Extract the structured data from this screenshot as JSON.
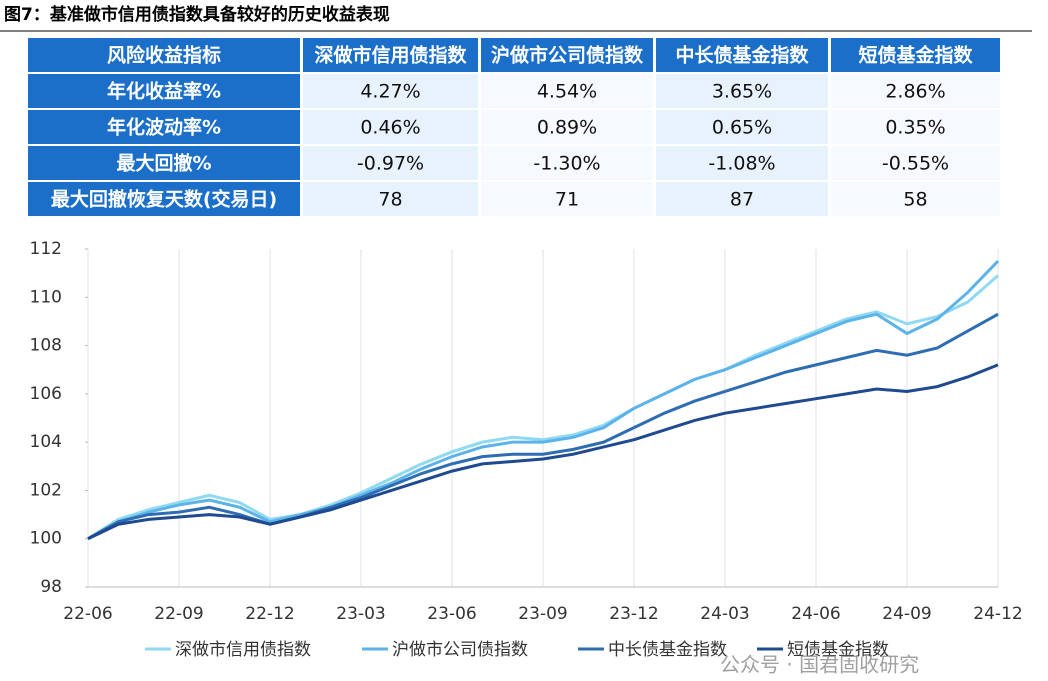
{
  "title": "图7：基准做市信用债指数具备较好的历史收益表现",
  "table": {
    "header": [
      "风险收益指标",
      "深做市信用债指数",
      "沪做市公司债指数",
      "中长债基金指数",
      "短债基金指数"
    ],
    "rows": [
      [
        "年化收益率%",
        "4.27%",
        "4.54%",
        "3.65%",
        "2.86%"
      ],
      [
        "年化波动率%",
        "0.46%",
        "0.89%",
        "0.65%",
        "0.35%"
      ],
      [
        "最大回撤%",
        "-0.97%",
        "-1.30%",
        "-1.08%",
        "-0.55%"
      ],
      [
        "最大回撤恢复天数(交易日)",
        "78",
        "71",
        "87",
        "58"
      ]
    ]
  },
  "chart_data": {
    "type": "line",
    "x": [
      0,
      1,
      2,
      3,
      4,
      5,
      6,
      7,
      8,
      9,
      10,
      11,
      12,
      13,
      14,
      15,
      16,
      17,
      18,
      19,
      20,
      21,
      22,
      23,
      24,
      25,
      26,
      27,
      28,
      29,
      30
    ],
    "xlim": [
      0,
      30
    ],
    "xticks": [
      {
        "value": 0,
        "label": "22-06"
      },
      {
        "value": 3,
        "label": "22-09"
      },
      {
        "value": 6,
        "label": "22-12"
      },
      {
        "value": 9,
        "label": "23-03"
      },
      {
        "value": 12,
        "label": "23-06"
      },
      {
        "value": 15,
        "label": "23-09"
      },
      {
        "value": 18,
        "label": "23-12"
      },
      {
        "value": 21,
        "label": "24-03"
      },
      {
        "value": 24,
        "label": "24-06"
      },
      {
        "value": 27,
        "label": "24-09"
      },
      {
        "value": 30,
        "label": "24-12"
      }
    ],
    "ylim": [
      98,
      112
    ],
    "yticks": [
      98,
      100,
      102,
      104,
      106,
      108,
      110,
      112
    ],
    "grid": "x",
    "legend": "bottom",
    "series": [
      {
        "name": "深做市信用债指数",
        "color": "#8fd9f2",
        "values": [
          100,
          100.8,
          101.2,
          101.5,
          101.8,
          101.5,
          100.8,
          101.0,
          101.4,
          101.9,
          102.5,
          103.1,
          103.6,
          104.0,
          104.2,
          104.1,
          104.3,
          104.7,
          105.4,
          106.0,
          106.6,
          107.0,
          107.6,
          108.1,
          108.6,
          109.1,
          109.4,
          108.9,
          109.2,
          109.8,
          110.9
        ]
      },
      {
        "name": "沪做市公司债指数",
        "color": "#5cb3ea",
        "values": [
          100,
          100.7,
          101.1,
          101.4,
          101.6,
          101.3,
          100.7,
          101.0,
          101.3,
          101.8,
          102.3,
          102.9,
          103.4,
          103.8,
          104.0,
          104.0,
          104.2,
          104.6,
          105.4,
          106.0,
          106.6,
          107.0,
          107.5,
          108.0,
          108.5,
          109.0,
          109.3,
          108.5,
          109.1,
          110.2,
          111.5
        ]
      },
      {
        "name": "中长债基金指数",
        "color": "#2f6db3",
        "values": [
          100,
          100.7,
          101.0,
          101.1,
          101.3,
          101.0,
          100.6,
          100.9,
          101.3,
          101.7,
          102.2,
          102.7,
          103.1,
          103.4,
          103.5,
          103.5,
          103.7,
          104.0,
          104.6,
          105.2,
          105.7,
          106.1,
          106.5,
          106.9,
          107.2,
          107.5,
          107.8,
          107.6,
          107.9,
          108.6,
          109.3
        ]
      },
      {
        "name": "短债基金指数",
        "color": "#1f4a8f",
        "values": [
          100,
          100.6,
          100.8,
          100.9,
          101.0,
          100.9,
          100.6,
          100.9,
          101.2,
          101.6,
          102.0,
          102.4,
          102.8,
          103.1,
          103.2,
          103.3,
          103.5,
          103.8,
          104.1,
          104.5,
          104.9,
          105.2,
          105.4,
          105.6,
          105.8,
          106.0,
          106.2,
          106.1,
          106.3,
          106.7,
          107.2
        ]
      }
    ]
  },
  "watermark": "公众号 · 国君固收研究"
}
